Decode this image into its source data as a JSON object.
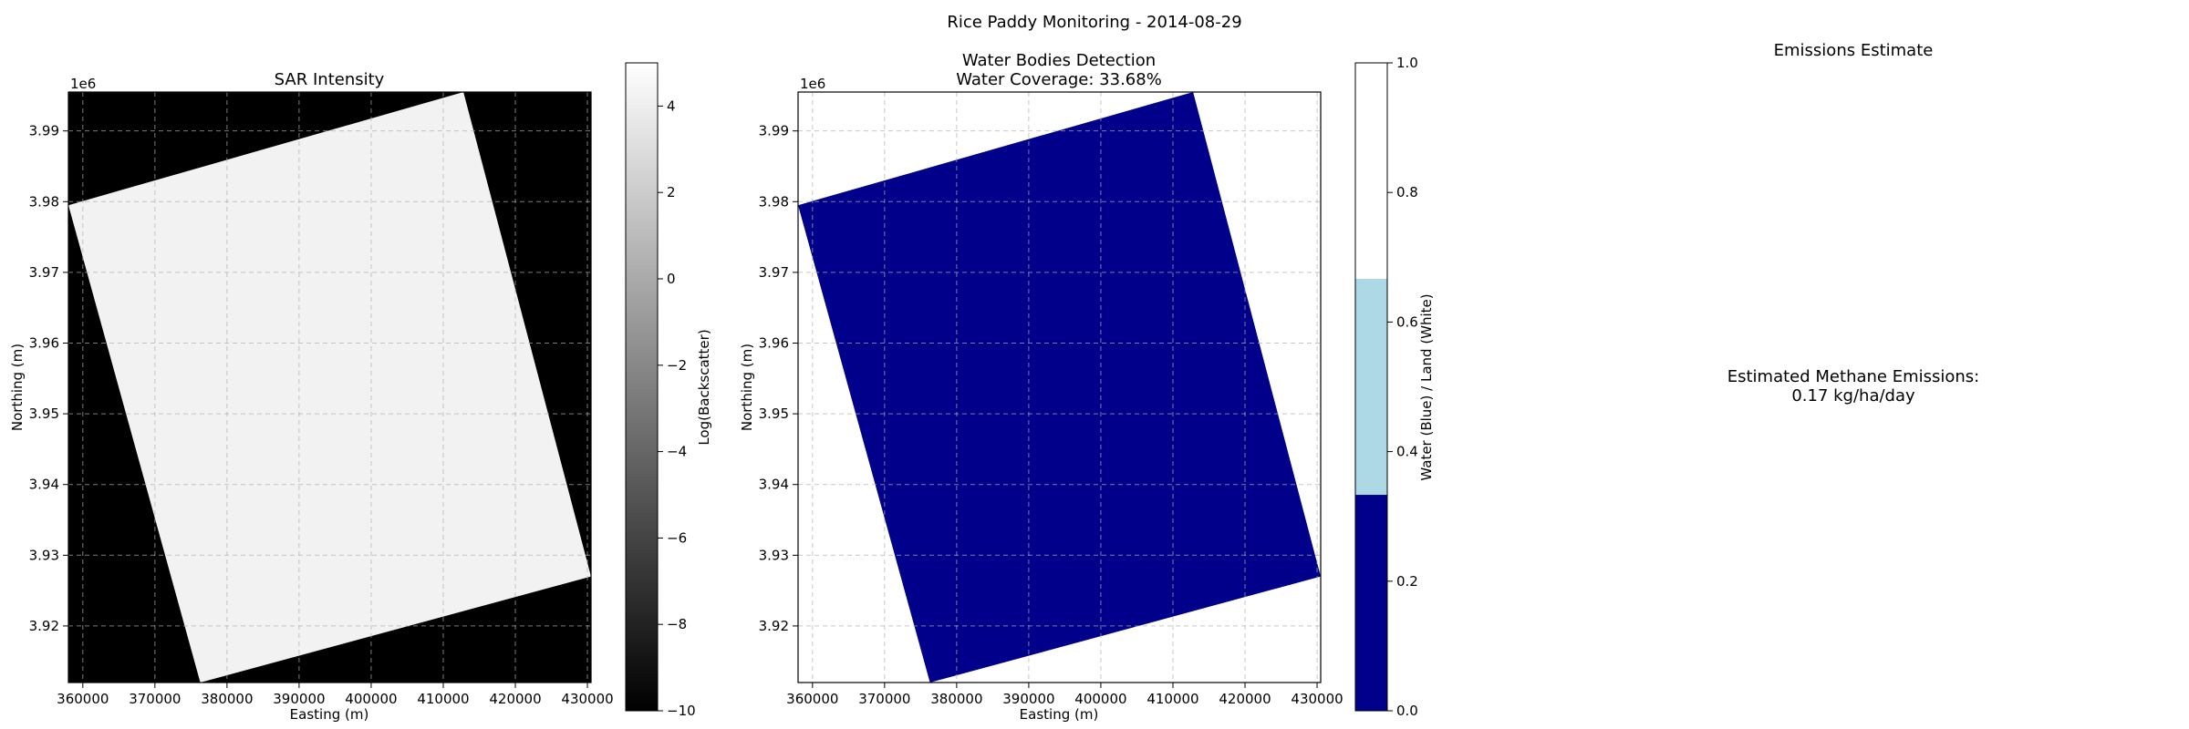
{
  "figure": {
    "suptitle": "Rice Paddy Monitoring - 2014-08-29"
  },
  "chart_data": [
    {
      "type": "heatmap",
      "title": "SAR Intensity",
      "xlabel": "Easting (m)",
      "ylabel": "Northing (m)",
      "y_offset_label": "1e6",
      "xlim": [
        358000,
        430500
      ],
      "ylim": [
        3.912,
        3.9955
      ],
      "x_ticks": [
        360000,
        370000,
        380000,
        390000,
        400000,
        410000,
        420000,
        430000
      ],
      "x_tick_labels": [
        "360000",
        "370000",
        "380000",
        "390000",
        "400000",
        "410000",
        "420000",
        "430000"
      ],
      "y_ticks": [
        3.92,
        3.93,
        3.94,
        3.95,
        3.96,
        3.97,
        3.98,
        3.99
      ],
      "y_tick_labels": [
        "3.92",
        "3.93",
        "3.94",
        "3.95",
        "3.96",
        "3.97",
        "3.98",
        "3.99"
      ],
      "grid": true,
      "background_color": "#000000",
      "footprint_color": "#f2f2f2",
      "footprint": [
        [
          358000,
          3.9795
        ],
        [
          412800,
          3.9955
        ],
        [
          430500,
          3.927
        ],
        [
          376300,
          3.912
        ]
      ],
      "colorbar": {
        "label": "Log(Backscatter)",
        "min": -10,
        "max": 5,
        "ticks": [
          4,
          2,
          0,
          -2,
          -4,
          -6,
          -8,
          -10
        ],
        "tick_labels": [
          "4",
          "2",
          "0",
          "−2",
          "−4",
          "−6",
          "−8",
          "−10"
        ],
        "colormap": "gray"
      }
    },
    {
      "type": "heatmap",
      "title": "Water Bodies Detection",
      "subtitle": "Water Coverage: 33.68%",
      "xlabel": "Easting (m)",
      "ylabel": "Northing (m)",
      "y_offset_label": "1e6",
      "xlim": [
        358000,
        430500
      ],
      "ylim": [
        3.912,
        3.9955
      ],
      "x_ticks": [
        360000,
        370000,
        380000,
        390000,
        400000,
        410000,
        420000,
        430000
      ],
      "x_tick_labels": [
        "360000",
        "370000",
        "380000",
        "390000",
        "400000",
        "410000",
        "420000",
        "430000"
      ],
      "y_ticks": [
        3.92,
        3.93,
        3.94,
        3.95,
        3.96,
        3.97,
        3.98,
        3.99
      ],
      "y_tick_labels": [
        "3.92",
        "3.93",
        "3.94",
        "3.95",
        "3.96",
        "3.97",
        "3.98",
        "3.99"
      ],
      "grid": true,
      "background_color": "#ffffff",
      "footprint_color": "#00008b",
      "footprint": [
        [
          358000,
          3.9795
        ],
        [
          412800,
          3.9955
        ],
        [
          430500,
          3.927
        ],
        [
          376300,
          3.912
        ]
      ],
      "colorbar": {
        "label": "Water (Blue) / Land (White)",
        "min": 0,
        "max": 1,
        "ticks": [
          1.0,
          0.8,
          0.6,
          0.4,
          0.2,
          0.0
        ],
        "tick_labels": [
          "1.0",
          "0.8",
          "0.6",
          "0.4",
          "0.2",
          "0.0"
        ],
        "segments": [
          {
            "from": 0.0,
            "to": 0.3333,
            "color": "#00008b"
          },
          {
            "from": 0.3333,
            "to": 0.6667,
            "color": "#add8e6"
          },
          {
            "from": 0.6667,
            "to": 1.0,
            "color": "#ffffff"
          }
        ]
      }
    },
    {
      "type": "text",
      "title": "Emissions Estimate",
      "text_line1": "Estimated Methane Emissions:",
      "text_line2": "0.17 kg/ha/day",
      "value": 0.17,
      "unit": "kg/ha/day"
    }
  ]
}
